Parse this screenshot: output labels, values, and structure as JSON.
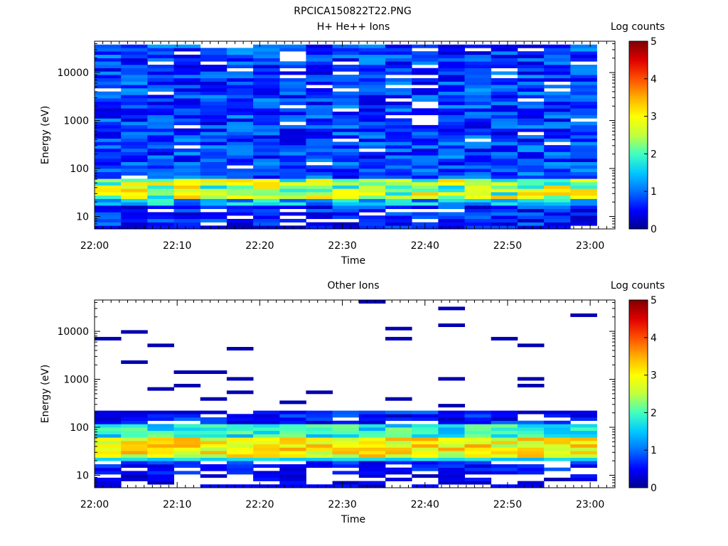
{
  "figure_title": "RPCICA150822T22.PNG",
  "colormap": [
    "#00008f",
    "#0000ff",
    "#0070ff",
    "#00c8ff",
    "#40ffc0",
    "#c0ff40",
    "#ffff00",
    "#ffb000",
    "#ff5000",
    "#e00000",
    "#800000"
  ],
  "chart_data": [
    {
      "type": "heatmap",
      "title": "H+ He++ Ions",
      "xlabel": "Time",
      "ylabel": "Energy (eV)",
      "xticks": [
        "22:00",
        "22:10",
        "22:20",
        "22:30",
        "22:40",
        "22:50",
        "23:00"
      ],
      "xlim_minutes": [
        0,
        63
      ],
      "yscale": "log",
      "ylim": [
        5.5,
        45000
      ],
      "yticks": [
        "10",
        "100",
        "1000",
        "10000"
      ],
      "colorbar": {
        "label": "Log counts",
        "ticks": [
          "0",
          "1",
          "2",
          "3",
          "4",
          "5"
        ],
        "range": [
          0,
          5
        ]
      },
      "time_bins_minutes": [
        0,
        3.2,
        6.4,
        9.6,
        12.8,
        16,
        19.2,
        22.4,
        25.6,
        28.8,
        32,
        35.2,
        38.4,
        41.6,
        44.8,
        48,
        51.2,
        54.4,
        57.6,
        60.8
      ],
      "description": "Low energy band (~20-60 eV) at 2.5-3.5 log counts; background 0.3-1.2 log counts up to ~40 keV"
    },
    {
      "type": "heatmap",
      "title": "Other Ions",
      "xlabel": "Time",
      "ylabel": "Energy (eV)",
      "xticks": [
        "22:00",
        "22:10",
        "22:20",
        "22:30",
        "22:40",
        "22:50",
        "23:00"
      ],
      "xlim_minutes": [
        0,
        63
      ],
      "yscale": "log",
      "ylim": [
        5.5,
        45000
      ],
      "yticks": [
        "10",
        "100",
        "1000",
        "10000"
      ],
      "colorbar": {
        "label": "Log counts",
        "ticks": [
          "0",
          "1",
          "2",
          "3",
          "4",
          "5"
        ],
        "range": [
          0,
          5
        ]
      },
      "time_bins_minutes": [
        0,
        3.2,
        6.4,
        9.6,
        12.8,
        16,
        19.2,
        22.4,
        25.6,
        28.8,
        32,
        35.2,
        38.4,
        41.6,
        44.8,
        48,
        51.2,
        54.4,
        57.6,
        60.8
      ],
      "description": "Dense population ~25-200 eV peaking ~3.5 log counts near 35-45 eV; sparse single counts at higher energies"
    }
  ]
}
